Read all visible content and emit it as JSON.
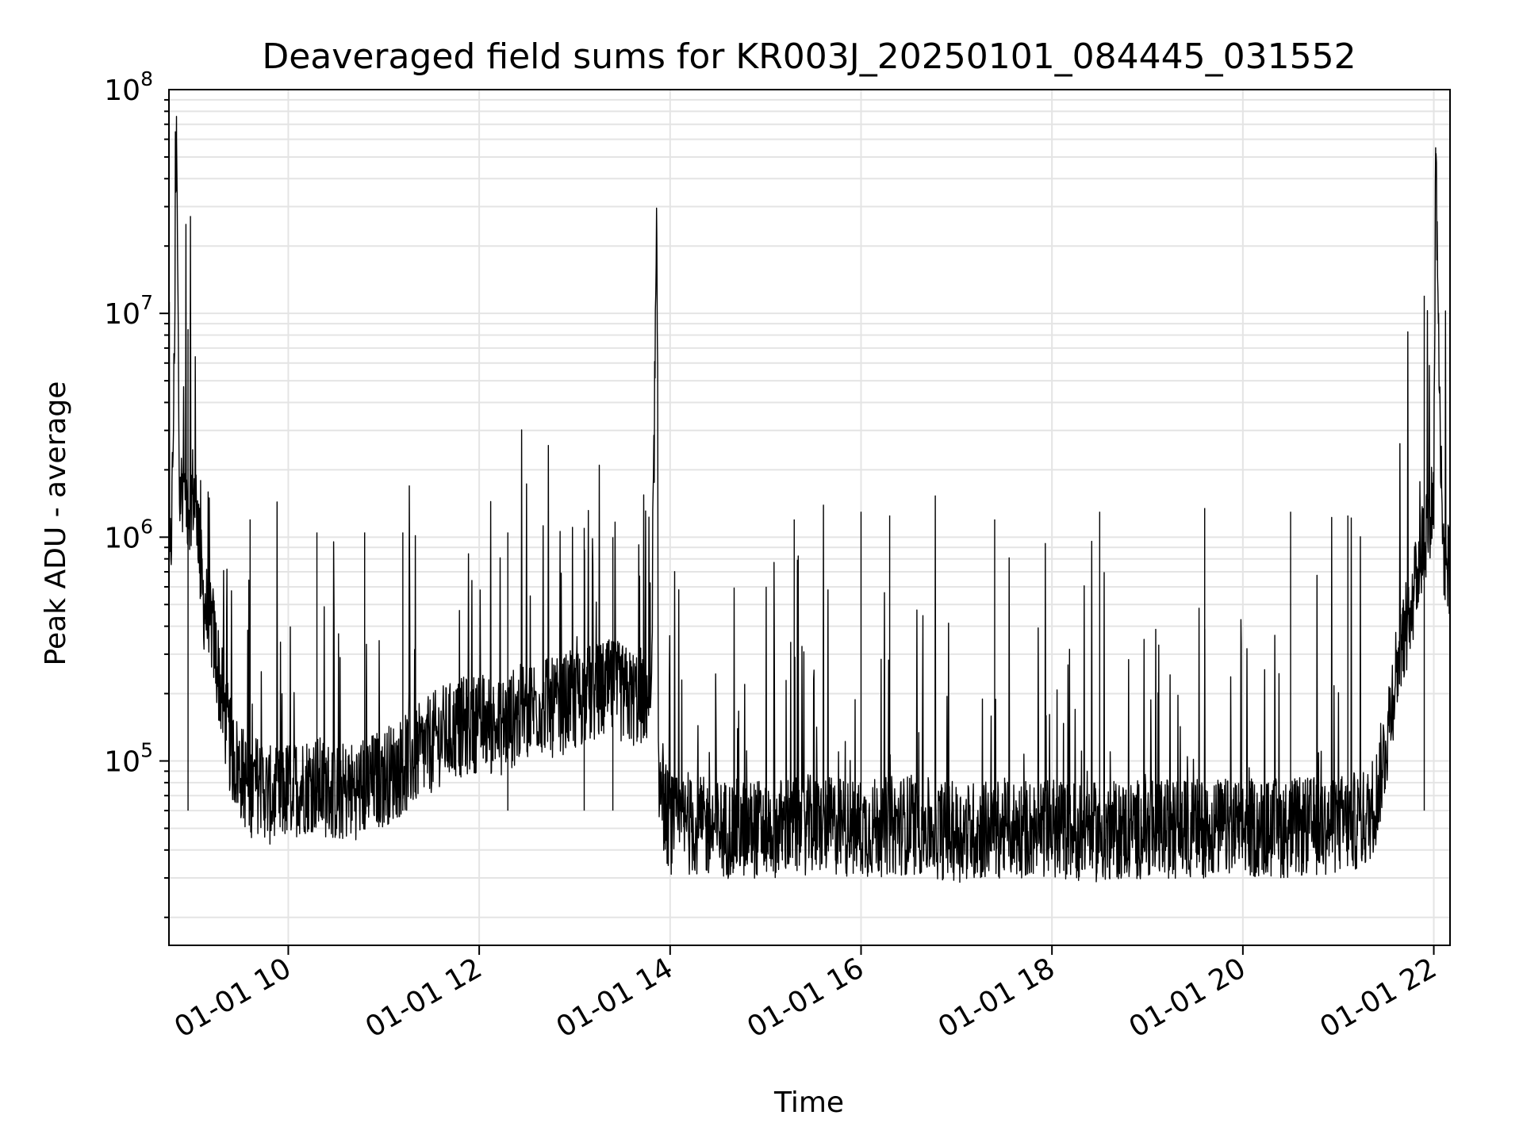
{
  "chart_data": {
    "type": "line",
    "title": "Deaveraged field sums for KR003J_20250101_084445_031552",
    "xlabel": "Time",
    "ylabel": "Peak ADU - average",
    "yscale": "log",
    "ylim": [
      15000,
      100000000
    ],
    "xlim": [
      8.75,
      22.17
    ],
    "grid": true,
    "line_color": "#000000",
    "x_ticks": [
      {
        "value": 10,
        "label": "01-01 10"
      },
      {
        "value": 12,
        "label": "01-01 12"
      },
      {
        "value": 14,
        "label": "01-01 14"
      },
      {
        "value": 16,
        "label": "01-01 16"
      },
      {
        "value": 18,
        "label": "01-01 18"
      },
      {
        "value": 20,
        "label": "01-01 20"
      },
      {
        "value": 22,
        "label": "01-01 22"
      }
    ],
    "y_ticks": [
      {
        "value": 100000,
        "base": "10",
        "exp": "5"
      },
      {
        "value": 1000000,
        "base": "10",
        "exp": "6"
      },
      {
        "value": 10000000,
        "base": "10",
        "exp": "7"
      },
      {
        "value": 100000000,
        "base": "10",
        "exp": "8"
      }
    ],
    "series": [
      {
        "x": [
          8.75,
          8.78,
          8.8,
          8.83,
          8.86,
          8.9,
          8.95,
          9.0,
          9.05,
          9.1,
          9.15,
          9.2,
          9.3,
          9.4,
          9.5,
          9.6,
          9.7,
          9.8,
          9.9,
          10.0,
          10.25,
          10.5,
          10.75,
          11.0,
          11.2,
          11.4,
          11.6,
          11.8,
          12.0,
          12.2,
          12.4,
          12.6,
          12.8,
          13.0,
          13.2,
          13.4,
          13.6,
          13.8,
          13.86,
          13.88,
          13.95,
          14.0,
          14.5,
          15.0,
          15.5,
          16.0,
          16.5,
          17.0,
          17.5,
          18.0,
          18.5,
          19.0,
          19.5,
          20.0,
          20.5,
          21.0,
          21.3,
          21.4,
          21.5,
          21.6,
          21.7,
          21.8,
          21.85,
          21.9,
          21.95,
          22.0,
          22.02,
          22.05,
          22.08,
          22.1,
          22.13,
          22.17
        ],
        "y": [
          600000,
          1200000,
          4000000,
          60000000,
          1500000,
          1800000,
          1400000,
          1600000,
          1300000,
          550000,
          450000,
          400000,
          200000,
          110000,
          90000,
          75000,
          80000,
          70000,
          68000,
          75000,
          80000,
          72000,
          75000,
          85000,
          95000,
          110000,
          130000,
          140000,
          150000,
          140000,
          160000,
          180000,
          170000,
          190000,
          200000,
          210000,
          190000,
          200000,
          23000000,
          80000,
          60000,
          52000,
          50000,
          50000,
          52000,
          50000,
          52000,
          48000,
          50000,
          50000,
          48000,
          50000,
          50000,
          50000,
          50000,
          52000,
          55000,
          70000,
          120000,
          250000,
          400000,
          600000,
          800000,
          1000000,
          1300000,
          1500000,
          55000000,
          10000000,
          1500000,
          900000,
          800000,
          650000
        ]
      }
    ],
    "spikes": [
      {
        "x": 8.95,
        "y": 8500000
      },
      {
        "x": 9.6,
        "y": 1200000
      },
      {
        "x": 10.3,
        "y": 1050000
      },
      {
        "x": 10.8,
        "y": 1050000
      },
      {
        "x": 11.2,
        "y": 1050000
      },
      {
        "x": 12.3,
        "y": 1050000
      },
      {
        "x": 13.1,
        "y": 1100000
      },
      {
        "x": 13.4,
        "y": 1000000
      },
      {
        "x": 15.3,
        "y": 1200000
      },
      {
        "x": 16.0,
        "y": 1300000
      },
      {
        "x": 16.3,
        "y": 1250000
      },
      {
        "x": 17.4,
        "y": 1200000
      },
      {
        "x": 18.5,
        "y": 1300000
      },
      {
        "x": 19.6,
        "y": 1350000
      },
      {
        "x": 20.5,
        "y": 1300000
      },
      {
        "x": 21.1,
        "y": 1250000
      },
      {
        "x": 21.9,
        "y": 12000000
      }
    ]
  }
}
